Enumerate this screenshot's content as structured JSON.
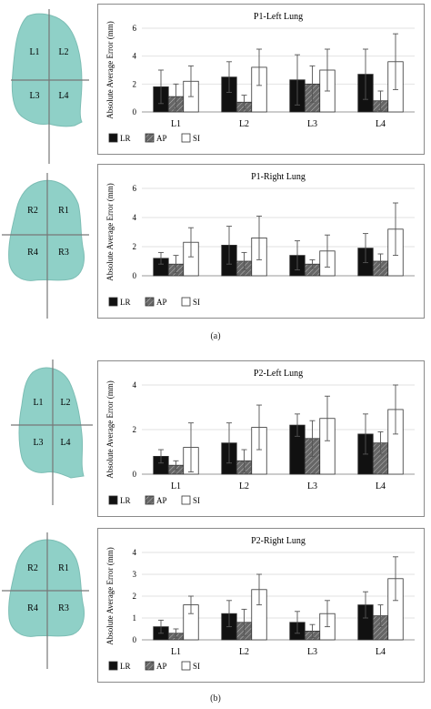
{
  "captions": [
    "(a)",
    "(b)"
  ],
  "lungs": [
    {
      "labels": [
        "L1",
        "L2",
        "L3",
        "L4"
      ]
    },
    {
      "labels": [
        "R2",
        "R1",
        "R4",
        "R3"
      ]
    },
    {
      "labels": [
        "L1",
        "L2",
        "L3",
        "L4"
      ]
    },
    {
      "labels": [
        "R2",
        "R1",
        "R4",
        "R3"
      ]
    }
  ],
  "colors": {
    "lung_fill": "#8fd0c7",
    "lr": "#111111",
    "ap": "#666666",
    "si": "#ffffff",
    "axis": "#999999"
  },
  "chart_data": [
    {
      "type": "bar",
      "title": "P1-Left Lung",
      "ylabel": "Absolute Average Error (mm)",
      "ylim": [
        0,
        6
      ],
      "yticks": [
        0,
        2,
        4,
        6
      ],
      "categories": [
        "L1",
        "L2",
        "L3",
        "L4"
      ],
      "series": [
        {
          "name": "LR",
          "values": [
            1.8,
            2.5,
            2.3,
            2.7
          ],
          "errors": [
            1.2,
            1.1,
            1.8,
            1.8
          ]
        },
        {
          "name": "AP",
          "values": [
            1.1,
            0.7,
            2.0,
            0.8
          ],
          "errors": [
            0.9,
            0.5,
            1.3,
            0.7
          ]
        },
        {
          "name": "SI",
          "values": [
            2.2,
            3.2,
            3.0,
            3.6
          ],
          "errors": [
            1.1,
            1.3,
            1.5,
            2.0
          ]
        }
      ],
      "legend": "bottom-left",
      "grid": true
    },
    {
      "type": "bar",
      "title": "P1-Right Lung",
      "ylabel": "Absolute Average Error (mm)",
      "ylim": [
        0,
        6
      ],
      "yticks": [
        0,
        2,
        4,
        6
      ],
      "categories": [
        "",
        "",
        "",
        ""
      ],
      "series": [
        {
          "name": "LR",
          "values": [
            1.2,
            2.1,
            1.4,
            1.9
          ],
          "errors": [
            0.4,
            1.3,
            1.0,
            1.0
          ]
        },
        {
          "name": "AP",
          "values": [
            0.8,
            1.0,
            0.8,
            1.0
          ],
          "errors": [
            0.6,
            0.6,
            0.3,
            0.5
          ]
        },
        {
          "name": "SI",
          "values": [
            2.3,
            2.6,
            1.7,
            3.2
          ],
          "errors": [
            1.0,
            1.5,
            1.1,
            1.8
          ]
        }
      ],
      "legend": "bottom-left",
      "grid": true
    },
    {
      "type": "bar",
      "title": "P2-Left Lung",
      "ylabel": "Absolute Average Error (mm)",
      "ylim": [
        0,
        4
      ],
      "yticks": [
        0,
        2,
        4
      ],
      "categories": [
        "L1",
        "L2",
        "L3",
        "L4"
      ],
      "series": [
        {
          "name": "LR",
          "values": [
            0.8,
            1.4,
            2.2,
            1.8
          ],
          "errors": [
            0.3,
            0.9,
            0.5,
            0.9
          ]
        },
        {
          "name": "AP",
          "values": [
            0.4,
            0.6,
            1.6,
            1.4
          ],
          "errors": [
            0.2,
            0.5,
            0.8,
            0.5
          ]
        },
        {
          "name": "SI",
          "values": [
            1.2,
            2.1,
            2.5,
            2.9
          ],
          "errors": [
            1.1,
            1.0,
            1.0,
            1.1
          ]
        }
      ],
      "legend": "bottom-left",
      "grid": true
    },
    {
      "type": "bar",
      "title": "P2-Right Lung",
      "ylabel": "Absolute Average Error (mm)",
      "ylim": [
        0,
        4
      ],
      "yticks": [
        0,
        1,
        2,
        3,
        4
      ],
      "categories": [
        "L1",
        "L2",
        "L3",
        "L4"
      ],
      "series": [
        {
          "name": "LR",
          "values": [
            0.6,
            1.2,
            0.8,
            1.6
          ],
          "errors": [
            0.3,
            0.6,
            0.5,
            0.6
          ]
        },
        {
          "name": "AP",
          "values": [
            0.3,
            0.8,
            0.4,
            1.1
          ],
          "errors": [
            0.2,
            0.6,
            0.3,
            0.5
          ]
        },
        {
          "name": "SI",
          "values": [
            1.6,
            2.3,
            1.2,
            2.8
          ],
          "errors": [
            0.4,
            0.7,
            0.6,
            1.0
          ]
        }
      ],
      "legend": "bottom-left",
      "grid": true
    }
  ]
}
